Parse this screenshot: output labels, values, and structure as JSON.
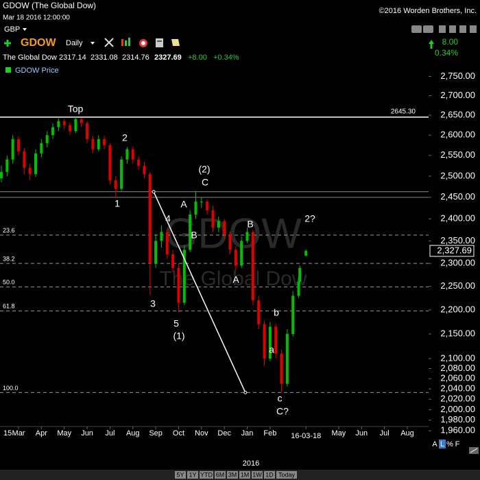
{
  "chart_data": {
    "type": "candlestick",
    "title": "GDOW (The Global Dow)",
    "copyright": "©2016 Worden Brothers, Inc.",
    "timestamp": "Mar 18 2016 12:00:00",
    "currency": "GBP",
    "symbol": "GDOW",
    "interval": "Daily",
    "name": "The Global Dow",
    "change": "+8.00",
    "change_pct": "+0.34%",
    "side_change": "8.00",
    "side_change_pct": "0.34%",
    "legend": "GDOW Price",
    "watermark_symbol": "GDOW",
    "watermark_name": "The Global Dow",
    "last_price_label": {
      "value": 2327.69,
      "label": "2,327.69"
    },
    "up_color": "#00c000",
    "down_color": "#e00000",
    "log_scale": true,
    "x": [
      2.25,
      2.5,
      2.75,
      3.0,
      3.25,
      3.5,
      3.75,
      4.0,
      4.25,
      4.5,
      4.75,
      5.0,
      5.25,
      5.5,
      5.75,
      6.0,
      6.25,
      6.5,
      6.75,
      7.0,
      7.25,
      7.5,
      7.75,
      8.0,
      8.25,
      8.5,
      8.75,
      9.0,
      9.25,
      9.5,
      9.75,
      10.0,
      10.25,
      10.5,
      10.75,
      11.0,
      11.25,
      11.5,
      11.75,
      12.0,
      12.25,
      12.5,
      12.75,
      13.0,
      13.25,
      13.5,
      13.75,
      14.0,
      14.25,
      14.5,
      14.75,
      15.0,
      15.25,
      15.3,
      15.57
    ],
    "open": [
      2495,
      2510,
      2540,
      2590,
      2560,
      2520,
      2505,
      2555,
      2580,
      2600,
      2620,
      2635,
      2625,
      2610,
      2640,
      2630,
      2590,
      2565,
      2590,
      2575,
      2490,
      2470,
      2540,
      2565,
      2540,
      2525,
      2505,
      2300,
      2350,
      2370,
      2320,
      2290,
      2215,
      2330,
      2410,
      2440,
      2440,
      2420,
      2380,
      2395,
      2365,
      2330,
      2295,
      2350,
      2370,
      2220,
      2170,
      2100,
      2165,
      2110,
      2050,
      2150,
      2230,
      2260,
      2317.14
    ],
    "high": [
      2525,
      2550,
      2600,
      2598,
      2568,
      2530,
      2565,
      2590,
      2610,
      2630,
      2642,
      2640,
      2632,
      2645,
      2644,
      2635,
      2598,
      2600,
      2598,
      2580,
      2500,
      2548,
      2570,
      2572,
      2548,
      2535,
      2510,
      2365,
      2385,
      2378,
      2330,
      2300,
      2340,
      2420,
      2465,
      2450,
      2445,
      2430,
      2405,
      2400,
      2372,
      2338,
      2360,
      2380,
      2375,
      2230,
      2178,
      2175,
      2172,
      2118,
      2160,
      2240,
      2270,
      2295,
      2331.08
    ],
    "low": [
      2485,
      2500,
      2530,
      2550,
      2505,
      2490,
      2498,
      2545,
      2570,
      2590,
      2610,
      2615,
      2600,
      2605,
      2620,
      2580,
      2555,
      2560,
      2565,
      2480,
      2450,
      2465,
      2530,
      2530,
      2515,
      2495,
      2232,
      2290,
      2335,
      2310,
      2280,
      2195,
      2210,
      2325,
      2400,
      2425,
      2410,
      2370,
      2370,
      2355,
      2320,
      2284,
      2290,
      2345,
      2210,
      2160,
      2085,
      2095,
      2100,
      2033,
      2045,
      2145,
      2225,
      2255,
      2314.76
    ],
    "close": [
      2510,
      2540,
      2590,
      2560,
      2520,
      2505,
      2555,
      2580,
      2600,
      2620,
      2635,
      2625,
      2610,
      2640,
      2630,
      2590,
      2565,
      2590,
      2575,
      2490,
      2470,
      2540,
      2565,
      2540,
      2525,
      2505,
      2300,
      2350,
      2370,
      2320,
      2290,
      2215,
      2330,
      2410,
      2440,
      2440,
      2420,
      2380,
      2395,
      2365,
      2330,
      2295,
      2350,
      2370,
      2220,
      2170,
      2100,
      2165,
      2110,
      2050,
      2150,
      2230,
      2260,
      2290,
      2327.69
    ],
    "xlim": [
      2.19,
      20.93
    ],
    "xticks": [
      {
        "value": 3,
        "label": "Mar"
      },
      {
        "value": 4,
        "label": "Apr"
      },
      {
        "value": 5,
        "label": "May"
      },
      {
        "value": 6,
        "label": "Jun"
      },
      {
        "value": 7,
        "label": "Jul"
      },
      {
        "value": 8,
        "label": "Aug"
      },
      {
        "value": 9,
        "label": "Sep"
      },
      {
        "value": 10,
        "label": "Oct"
      },
      {
        "value": 11,
        "label": "Nov"
      },
      {
        "value": 12,
        "label": "Dec"
      },
      {
        "value": 13,
        "label": "Jan"
      },
      {
        "value": 14,
        "label": "Feb"
      },
      {
        "value": 15.57,
        "label": "16-03-18"
      },
      {
        "value": 17,
        "label": "May"
      },
      {
        "value": 18,
        "label": "Jun"
      },
      {
        "value": 19,
        "label": "Jul"
      },
      {
        "value": 20,
        "label": "Aug"
      }
    ],
    "year_labels": [
      "15",
      "2016"
    ],
    "ylim": [
      1950,
      2800
    ],
    "yticks": [
      {
        "value": 2750,
        "label": "2,750.00"
      },
      {
        "value": 2700,
        "label": "2,700.00"
      },
      {
        "value": 2650,
        "label": "2,650.00"
      },
      {
        "value": 2600,
        "label": "2,600.00"
      },
      {
        "value": 2550,
        "label": "2,550.00"
      },
      {
        "value": 2500,
        "label": "2,500.00"
      },
      {
        "value": 2450,
        "label": "2,450.00"
      },
      {
        "value": 2400,
        "label": "2,400.00"
      },
      {
        "value": 2350,
        "label": "2,350.00"
      },
      {
        "value": 2300,
        "label": "2,300.00"
      },
      {
        "value": 2250,
        "label": "2,250.00"
      },
      {
        "value": 2200,
        "label": "2,200.00"
      },
      {
        "value": 2150,
        "label": "2,150.00"
      },
      {
        "value": 2100,
        "label": "2,100.00"
      },
      {
        "value": 2080,
        "label": "2,080.00"
      },
      {
        "value": 2060,
        "label": "2,060.00"
      },
      {
        "value": 2040,
        "label": "2,040.00"
      },
      {
        "value": 2020,
        "label": "2,020.00"
      },
      {
        "value": 2000,
        "label": "2,000.00"
      },
      {
        "value": 1980,
        "label": "1,980.00"
      },
      {
        "value": 1960,
        "label": "1,960.00"
      }
    ],
    "top_line": {
      "value": 2645.3,
      "label": "2645.30"
    },
    "gray_lines": [
      2463,
      2450
    ],
    "fib": {
      "high": 2465,
      "low": 2033,
      "levels": [
        23.6,
        38.2,
        {
          "value": 50,
          "label": "50.0"
        },
        61.8,
        {
          "value": 100,
          "label": "100.0"
        }
      ]
    },
    "trend_line": {
      "x": [
        8.91,
        12.92
      ],
      "y": [
        2463,
        2033
      ]
    },
    "annotations": [
      "Top",
      "1",
      "2",
      "3",
      "4",
      "5",
      "(1)",
      "A",
      "B",
      "(2)",
      "C",
      "B",
      "A",
      "2?",
      "b",
      "a",
      "c",
      "C?"
    ],
    "scale_buttons": [
      "A",
      "L",
      "%",
      "F"
    ],
    "range_buttons": [
      "5Y",
      "1Y",
      "YTD",
      "6M",
      "3M",
      "1M",
      "1W",
      "1D",
      "Today"
    ]
  }
}
